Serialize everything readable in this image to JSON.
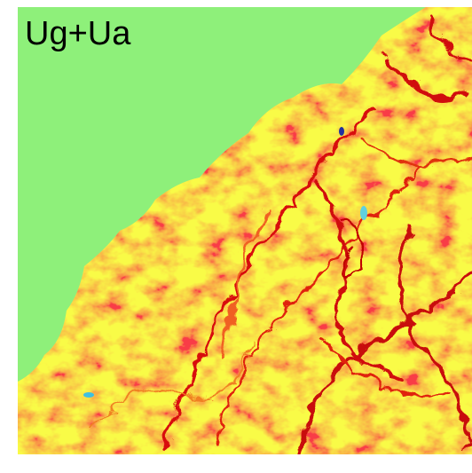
{
  "title": "Ug+Ua"
}
